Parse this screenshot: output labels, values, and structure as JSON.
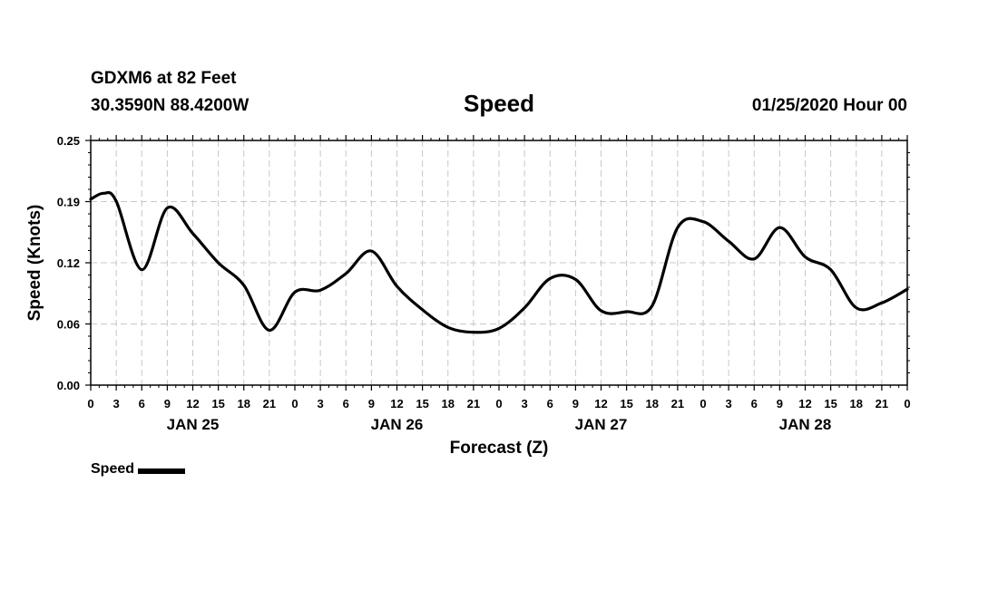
{
  "header": {
    "station": "GDXM6 at 82 Feet",
    "coords": "30.3590N 88.4200W",
    "title": "Speed",
    "run": "01/25/2020 Hour 00"
  },
  "legend": {
    "label": "Speed"
  },
  "chart_data": {
    "type": "line",
    "title": "Speed",
    "xlabel": "Forecast (Z)",
    "ylabel": "Speed (Knots)",
    "ylim": [
      0,
      0.25
    ],
    "yticks": [
      "0.00",
      "0.06",
      "0.12",
      "0.19",
      "0.25"
    ],
    "xlim": [
      0,
      96
    ],
    "xtick_step_hours": 3,
    "xtick_labels": [
      "0",
      "3",
      "6",
      "9",
      "12",
      "15",
      "18",
      "21",
      "0",
      "3",
      "6",
      "9",
      "12",
      "15",
      "18",
      "21",
      "0",
      "3",
      "6",
      "9",
      "12",
      "15",
      "18",
      "21",
      "0",
      "3",
      "6",
      "9",
      "12",
      "15",
      "18",
      "21",
      "0"
    ],
    "day_labels": [
      {
        "label": "JAN 25",
        "hour": 12
      },
      {
        "label": "JAN 26",
        "hour": 36
      },
      {
        "label": "JAN 27",
        "hour": 60
      },
      {
        "label": "JAN 28",
        "hour": 84
      }
    ],
    "grid": true,
    "legend_position": "bottom-left",
    "series": [
      {
        "name": "Speed",
        "color": "#000000",
        "x": [
          0,
          1.5,
          3,
          6,
          9,
          12,
          15,
          18,
          21,
          24,
          27,
          30,
          33,
          36,
          39,
          42,
          45,
          48,
          51,
          54,
          57,
          60,
          63,
          66,
          69,
          72,
          75,
          78,
          81,
          84,
          87,
          90,
          93,
          96
        ],
        "y": [
          0.19,
          0.196,
          0.188,
          0.118,
          0.181,
          0.155,
          0.125,
          0.102,
          0.056,
          0.095,
          0.097,
          0.114,
          0.137,
          0.101,
          0.077,
          0.059,
          0.054,
          0.058,
          0.079,
          0.109,
          0.108,
          0.076,
          0.075,
          0.081,
          0.161,
          0.167,
          0.147,
          0.129,
          0.161,
          0.131,
          0.118,
          0.079,
          0.084,
          0.098
        ]
      }
    ]
  }
}
